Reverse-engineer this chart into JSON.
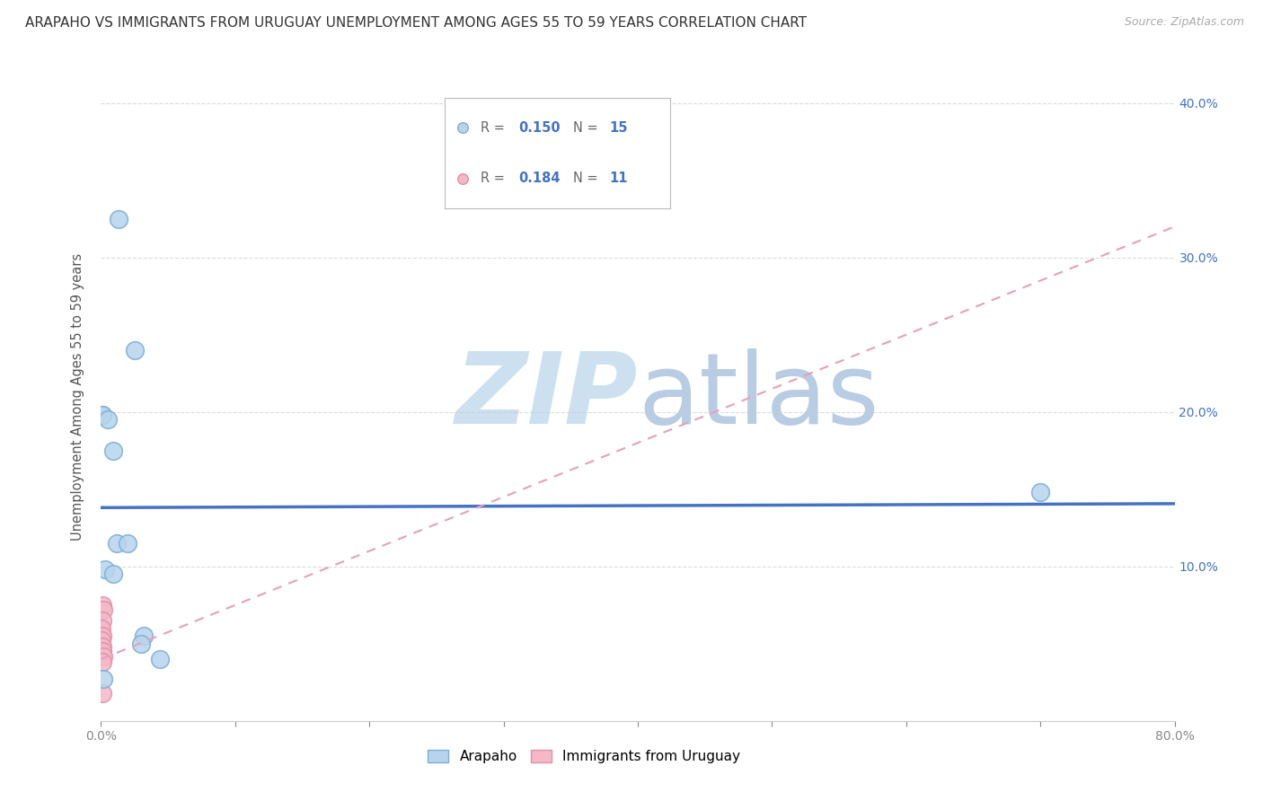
{
  "title": "ARAPAHO VS IMMIGRANTS FROM URUGUAY UNEMPLOYMENT AMONG AGES 55 TO 59 YEARS CORRELATION CHART",
  "source": "Source: ZipAtlas.com",
  "ylabel": "Unemployment Among Ages 55 to 59 years",
  "xlim": [
    0.0,
    0.8
  ],
  "ylim": [
    0.0,
    0.42
  ],
  "xticks": [
    0.0,
    0.1,
    0.2,
    0.3,
    0.4,
    0.5,
    0.6,
    0.7,
    0.8
  ],
  "xticklabels": [
    "0.0%",
    "",
    "",
    "",
    "",
    "",
    "",
    "",
    "80.0%"
  ],
  "yticks": [
    0.0,
    0.1,
    0.2,
    0.3,
    0.4
  ],
  "yticklabels_right": [
    "",
    "10.0%",
    "20.0%",
    "30.0%",
    "40.0%"
  ],
  "arapaho_x": [
    0.001,
    0.013,
    0.001,
    0.005,
    0.009,
    0.012,
    0.02,
    0.003,
    0.009,
    0.025,
    0.032,
    0.03,
    0.044,
    0.7,
    0.002
  ],
  "arapaho_y": [
    0.198,
    0.325,
    0.198,
    0.195,
    0.175,
    0.115,
    0.115,
    0.098,
    0.095,
    0.24,
    0.055,
    0.05,
    0.04,
    0.148,
    0.027
  ],
  "uruguay_x": [
    0.001,
    0.002,
    0.001,
    0.0005,
    0.001,
    0.0005,
    0.001,
    0.001,
    0.002,
    0.001,
    0.001
  ],
  "uruguay_y": [
    0.075,
    0.072,
    0.065,
    0.06,
    0.055,
    0.052,
    0.048,
    0.045,
    0.042,
    0.038,
    0.018
  ],
  "arapaho_color": "#b8d4ed",
  "arapaho_edge": "#7bafd4",
  "uruguay_color": "#f4b8c8",
  "uruguay_edge": "#e090a8",
  "arapaho_R": 0.15,
  "arapaho_N": 15,
  "uruguay_R": 0.184,
  "uruguay_N": 11,
  "trend_arapaho_color": "#4472c4",
  "trend_uruguay_color": "#e8a0b8",
  "watermark_zip": "ZIP",
  "watermark_atlas": "atlas",
  "watermark_color_zip": "#cce0f0",
  "watermark_color_atlas": "#b8cce4",
  "legend_color": "#4472c4",
  "background_color": "#ffffff",
  "grid_color": "#cccccc"
}
